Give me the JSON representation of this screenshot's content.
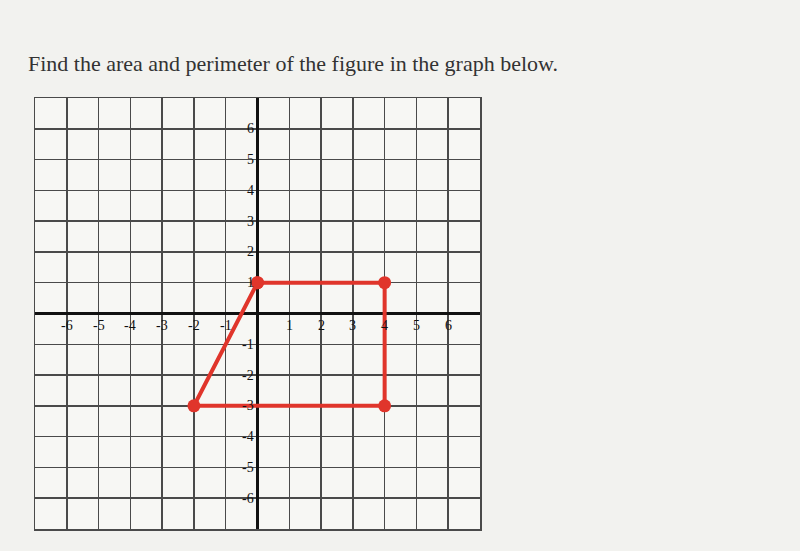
{
  "chart_data": {
    "type": "scatter",
    "title": "Find the area and perimeter of the figure in the graph below.",
    "x": [
      0,
      4,
      4,
      -2,
      0
    ],
    "values": [
      1,
      1,
      -3,
      -3,
      1
    ],
    "color": "#e0352b",
    "marker": "circle",
    "line_style": "solid",
    "xlim": [
      -7,
      7
    ],
    "ylim": [
      -7,
      7
    ],
    "xticks": [
      -6,
      -5,
      -4,
      -3,
      -2,
      -1,
      1,
      2,
      3,
      4,
      5,
      6
    ],
    "yticks": [
      -6,
      -5,
      -4,
      -3,
      -2,
      -1,
      1,
      2,
      3,
      4,
      5,
      6
    ],
    "grid": true
  }
}
